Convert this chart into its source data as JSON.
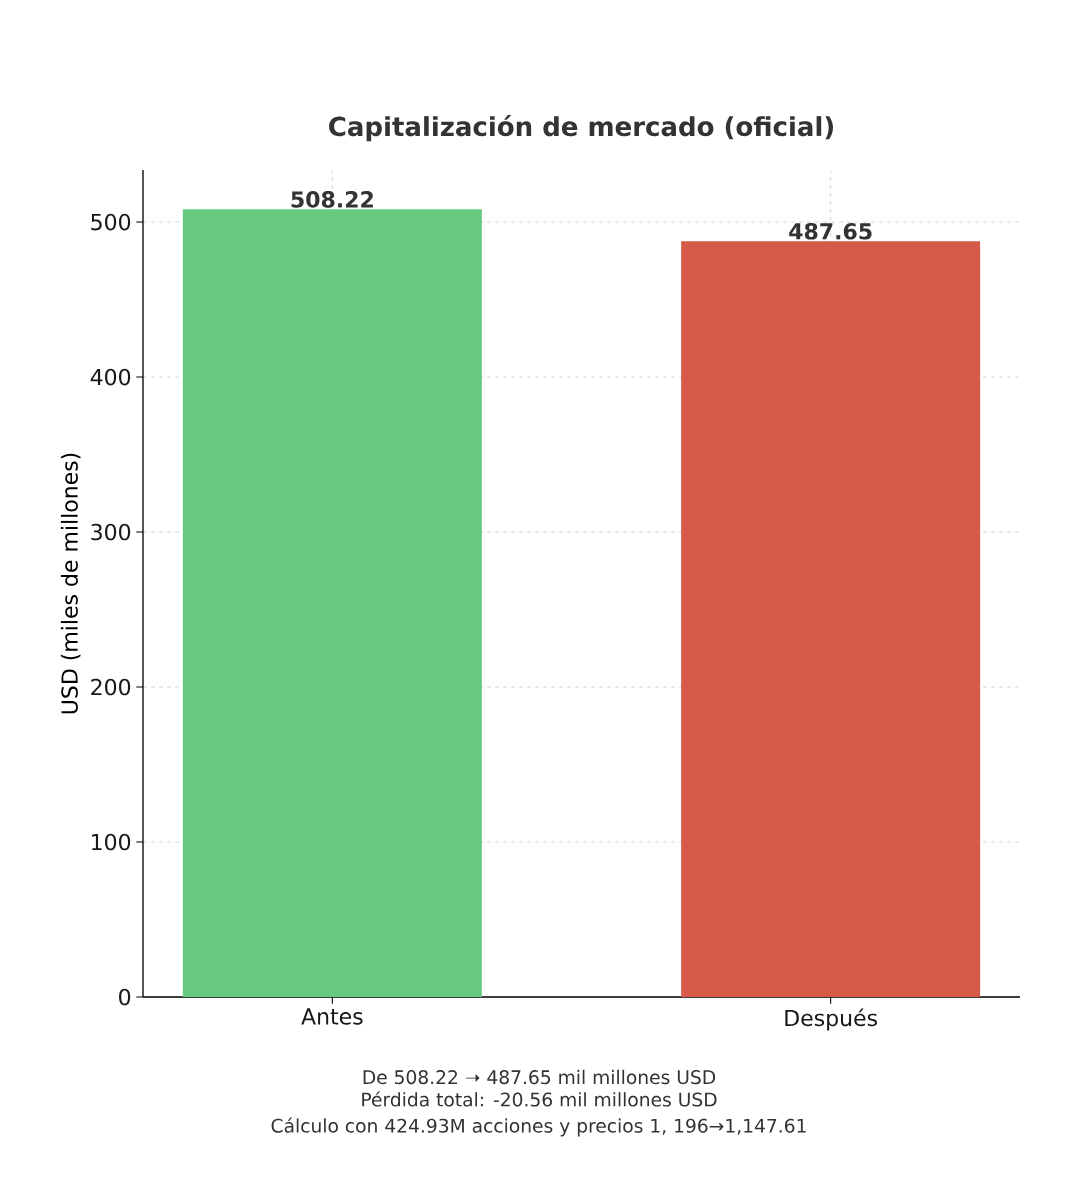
{
  "chart_data": {
    "type": "bar",
    "title": "Capitalización de mercado (oficial)",
    "ylabel": "USD (miles de millones)",
    "categories": [
      "Antes",
      "Después"
    ],
    "values": [
      508.22,
      487.65
    ],
    "colors": [
      "#66c97d",
      "#d65a48"
    ],
    "ylim": [
      0,
      533.6
    ],
    "yticks": [
      0,
      100,
      200,
      300,
      400,
      500
    ],
    "grid": true,
    "data_labels": true,
    "annotations": [
      "De 508.22 ➝ 487.65 mil millones USD",
      "Pérdida total: -20.56 mil millones USD",
      "Cálculo con 424.93M acciones y precios 1, 196→1,147.61"
    ]
  }
}
